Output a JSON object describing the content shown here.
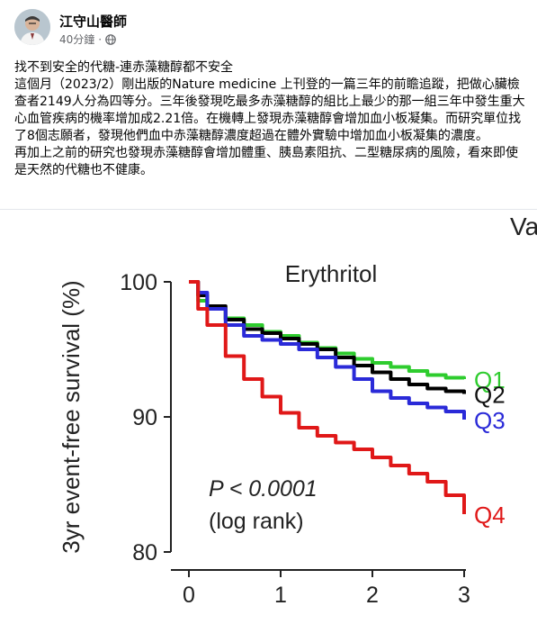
{
  "post": {
    "author": "江守山醫師",
    "time": "40分鐘",
    "paragraphs": [
      "找不到安全的代糖-連赤藻糖醇都不安全",
      "這個月（2023/2）剛出版的Nature medicine 上刊登的一篇三年的前瞻追蹤，把做心臟檢查者2149人分為四等分。三年後發現吃最多赤藻糖醇的組比上最少的那一組三年中發生重大心血管疾病的機率增加成2.21倍。在機轉上發現赤藻糖醇會增加血小板凝集。而研究單位找了8個志願者，發現他們血中赤藻糖醇濃度超過在體外實驗中增加血小板凝集的濃度。",
      "再加上之前的研究也發現赤藻糖醇會增加體重、胰島素阻抗、二型糖尿病的風險，看來即使是天然的代糖也不健康。"
    ]
  },
  "chart_data": {
    "type": "line",
    "title": "Erythritol",
    "corner_label": "Vali",
    "xlabel": "",
    "ylabel": "3yr event-free survival (%)",
    "xlim": [
      0,
      3
    ],
    "ylim": [
      80,
      100
    ],
    "x_ticks": [
      "0",
      "1",
      "2",
      "3"
    ],
    "y_ticks": [
      "100",
      "90",
      "80"
    ],
    "annotation_p": "P < 0.0001",
    "annotation_test": "(log rank)",
    "series": [
      {
        "name": "Q1",
        "color": "#2ecc2e",
        "x": [
          0,
          0.1,
          0.2,
          0.4,
          0.6,
          0.8,
          1.0,
          1.2,
          1.4,
          1.6,
          1.8,
          2.0,
          2.2,
          2.4,
          2.6,
          2.8,
          3.0
        ],
        "y": [
          100,
          98.6,
          98.0,
          97.3,
          96.8,
          96.3,
          96.0,
          95.5,
          95.1,
          94.7,
          94.3,
          94.0,
          93.7,
          93.4,
          93.1,
          92.9,
          92.8
        ]
      },
      {
        "name": "Q2",
        "color": "#000000",
        "x": [
          0,
          0.1,
          0.2,
          0.4,
          0.6,
          0.8,
          1.0,
          1.2,
          1.4,
          1.6,
          1.8,
          2.0,
          2.2,
          2.4,
          2.6,
          2.8,
          3.0
        ],
        "y": [
          100,
          99.0,
          98.2,
          97.2,
          96.5,
          96.2,
          95.8,
          95.4,
          95.0,
          94.4,
          93.8,
          93.3,
          92.8,
          92.4,
          92.1,
          91.9,
          91.7
        ]
      },
      {
        "name": "Q3",
        "color": "#2a2ad8",
        "x": [
          0,
          0.1,
          0.2,
          0.4,
          0.6,
          0.8,
          1.0,
          1.2,
          1.4,
          1.6,
          1.8,
          2.0,
          2.2,
          2.4,
          2.6,
          2.8,
          3.0
        ],
        "y": [
          100,
          99.2,
          98.0,
          96.8,
          96.0,
          95.7,
          95.4,
          95.0,
          94.4,
          93.7,
          92.8,
          91.9,
          91.4,
          91.0,
          90.7,
          90.4,
          89.8
        ]
      },
      {
        "name": "Q4",
        "color": "#e01818",
        "x": [
          0,
          0.1,
          0.2,
          0.4,
          0.6,
          0.8,
          1.0,
          1.2,
          1.4,
          1.6,
          1.8,
          2.0,
          2.2,
          2.4,
          2.6,
          2.8,
          3.0
        ],
        "y": [
          100,
          98.0,
          96.8,
          94.5,
          92.8,
          91.5,
          90.3,
          89.2,
          88.6,
          88.1,
          87.6,
          87.0,
          86.4,
          85.8,
          85.2,
          84.2,
          82.8
        ]
      }
    ]
  }
}
